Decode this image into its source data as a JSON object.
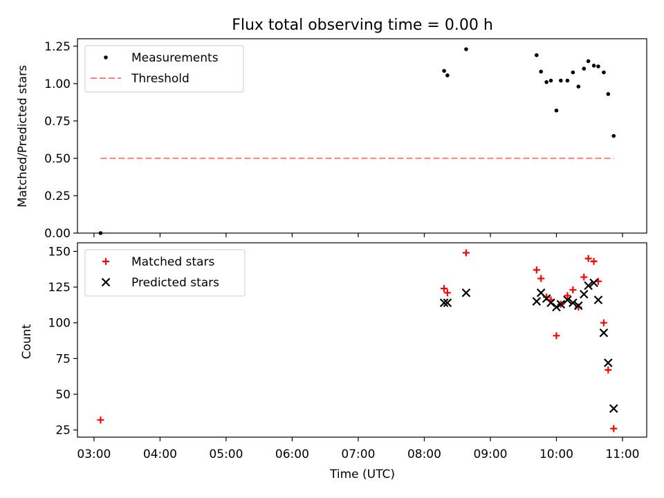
{
  "figure": {
    "title": "Flux total observing time = 0.00 h",
    "xlabel": "Time (UTC)"
  },
  "colors": {
    "measurements": "#000000",
    "threshold": "#ff8080",
    "matched": "#ff0000",
    "predicted": "#000000"
  },
  "chart_data": [
    {
      "type": "scatter",
      "ylabel": "Matched/Predicted stars",
      "xlim": [
        "02:45",
        "11:22"
      ],
      "ylim": [
        0,
        1.3
      ],
      "yticks": [
        "0.00",
        "0.25",
        "0.50",
        "0.75",
        "1.00",
        "1.25"
      ],
      "grid": false,
      "legend_position": "top-left",
      "series": [
        {
          "name": "Measurements",
          "marker": "dot",
          "points": [
            [
              "03:06",
              0.0
            ],
            [
              "08:18",
              1.085
            ],
            [
              "08:21",
              1.055
            ],
            [
              "08:38",
              1.23
            ],
            [
              "09:42",
              1.19
            ],
            [
              "09:46",
              1.08
            ],
            [
              "09:51",
              1.01
            ],
            [
              "09:55",
              1.02
            ],
            [
              "10:00",
              0.82
            ],
            [
              "10:04",
              1.02
            ],
            [
              "10:10",
              1.02
            ],
            [
              "10:15",
              1.075
            ],
            [
              "10:20",
              0.98
            ],
            [
              "10:25",
              1.1
            ],
            [
              "10:29",
              1.15
            ],
            [
              "10:34",
              1.12
            ],
            [
              "10:38",
              1.115
            ],
            [
              "10:43",
              1.075
            ],
            [
              "10:47",
              0.93
            ],
            [
              "10:52",
              0.65
            ]
          ]
        },
        {
          "name": "Threshold",
          "style": "dashed",
          "points": [
            [
              "03:06",
              0.5
            ],
            [
              "10:52",
              0.5
            ]
          ]
        }
      ]
    },
    {
      "type": "scatter",
      "ylabel": "Count",
      "xlim": [
        "02:45",
        "11:22"
      ],
      "ylim": [
        20,
        156
      ],
      "yticks": [
        "25",
        "50",
        "75",
        "100",
        "125",
        "150"
      ],
      "xticks": [
        "03:00",
        "04:00",
        "05:00",
        "06:00",
        "07:00",
        "08:00",
        "09:00",
        "10:00",
        "11:00"
      ],
      "grid": false,
      "legend_position": "top-left",
      "series": [
        {
          "name": "Matched stars",
          "marker": "plus",
          "points": [
            [
              "03:06",
              32
            ],
            [
              "08:18",
              124
            ],
            [
              "08:21",
              121
            ],
            [
              "08:38",
              149
            ],
            [
              "09:42",
              137
            ],
            [
              "09:46",
              131
            ],
            [
              "09:51",
              118
            ],
            [
              "09:55",
              116
            ],
            [
              "10:00",
              91
            ],
            [
              "10:04",
              113
            ],
            [
              "10:10",
              119
            ],
            [
              "10:15",
              123
            ],
            [
              "10:20",
              111
            ],
            [
              "10:25",
              132
            ],
            [
              "10:29",
              145
            ],
            [
              "10:34",
              143
            ],
            [
              "10:38",
              129
            ],
            [
              "10:43",
              100
            ],
            [
              "10:47",
              67
            ],
            [
              "10:52",
              26
            ]
          ]
        },
        {
          "name": "Predicted stars",
          "marker": "x",
          "points": [
            [
              "08:18",
              114
            ],
            [
              "08:21",
              114
            ],
            [
              "08:38",
              121
            ],
            [
              "09:42",
              115
            ],
            [
              "09:46",
              121
            ],
            [
              "09:51",
              117
            ],
            [
              "09:55",
              114
            ],
            [
              "10:00",
              111
            ],
            [
              "10:04",
              113
            ],
            [
              "10:10",
              116
            ],
            [
              "10:15",
              114
            ],
            [
              "10:20",
              112
            ],
            [
              "10:25",
              120
            ],
            [
              "10:29",
              126
            ],
            [
              "10:34",
              128
            ],
            [
              "10:38",
              116
            ],
            [
              "10:43",
              93
            ],
            [
              "10:47",
              72
            ],
            [
              "10:52",
              40
            ]
          ]
        }
      ]
    }
  ]
}
